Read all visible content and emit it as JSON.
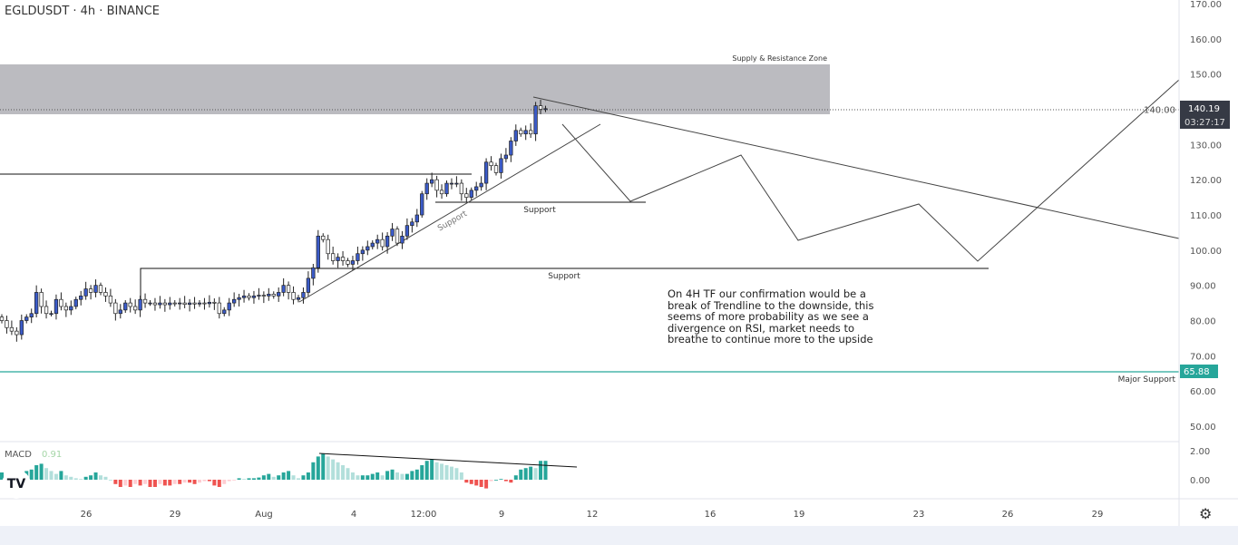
{
  "header": {
    "title": "EGLDUSDT · 4h · BINANCE"
  },
  "colors": {
    "up": "#3b5bc8",
    "down": "#ffffff",
    "wick": "#222222",
    "zone": "#bbbbc0",
    "major_support": "#26a69a",
    "macd_up_strong": "#26a69a",
    "macd_up_weak": "#b2dfdb",
    "macd_down_strong": "#ef5350",
    "macd_down_weak": "#ffcdd2"
  },
  "chart_data": [
    {
      "type": "candlestick",
      "symbol": "EGLDUSDT",
      "interval": "4h",
      "exchange": "BINANCE",
      "ylim": [
        50,
        170
      ],
      "y_ticks": [
        "170.00",
        "160.00",
        "150.00",
        "140.00",
        "130.00",
        "120.00",
        "110.00",
        "100.00",
        "90.00",
        "80.00",
        "70.00",
        "60.00",
        "50.00"
      ],
      "x_ticks": [
        "26",
        "29",
        "Aug",
        "4",
        "12:00",
        "9",
        "12",
        "16",
        "19",
        "23",
        "26",
        "29"
      ],
      "closes": [
        80,
        78,
        77,
        76,
        80,
        81,
        82,
        88,
        84,
        82,
        82,
        86,
        84,
        83,
        84,
        86,
        87,
        89,
        88,
        90,
        88,
        87,
        85,
        82,
        83,
        85,
        84,
        83,
        86,
        85,
        85,
        84.5,
        85,
        84.5,
        85,
        84.8,
        85,
        84.6,
        85,
        84.7,
        85,
        84.8,
        85.2,
        85,
        82,
        83,
        85,
        86,
        86.5,
        87,
        86.5,
        87,
        87.2,
        87,
        87.5,
        87,
        88,
        90,
        88,
        86,
        86.5,
        88,
        92,
        95,
        104,
        103,
        99,
        97,
        98,
        97,
        96,
        97,
        99,
        100,
        101,
        102,
        103,
        101,
        104,
        106,
        102,
        104,
        107,
        108,
        110,
        116,
        119,
        120,
        117,
        116,
        119,
        119,
        119,
        116,
        115,
        117,
        118,
        119,
        125,
        124,
        122,
        126,
        127,
        131,
        134,
        133,
        134,
        133,
        141,
        140,
        140.19
      ],
      "last_price": {
        "value": "140.19",
        "countdown": "03:27:17"
      },
      "annotations": {
        "supply_zone": {
          "label": "Supply & Resistance Zone",
          "from": 138.6,
          "to": 152.8
        },
        "support_upper": {
          "label": "Support",
          "price": 113.6
        },
        "support_lower": {
          "label": "Support",
          "price": 94.8
        },
        "trendline_label": "Support",
        "resistance_line": 121.6,
        "major_support": {
          "label": "Major Support",
          "value": "65.88"
        },
        "note": "On 4H TF our confirmation would be a break of Trendline to the downside, this seems of more probability as we see a divergence on RSI, market needs to breathe to continue more to the upside"
      }
    },
    {
      "type": "bar",
      "title": "MACD",
      "value": "0.91",
      "y_ticks": [
        "2.00",
        "0.00"
      ],
      "histogram": [
        0.5,
        0.3,
        0.2,
        0.3,
        0.4,
        0.6,
        0.7,
        1.0,
        1.1,
        0.8,
        0.6,
        0.4,
        0.6,
        0.3,
        0.2,
        0.1,
        0.05,
        0.2,
        0.3,
        0.5,
        0.3,
        0.2,
        0.0,
        -0.3,
        -0.5,
        -0.4,
        -0.5,
        -0.3,
        -0.4,
        -0.3,
        -0.5,
        -0.5,
        -0.3,
        -0.4,
        -0.4,
        -0.3,
        -0.3,
        -0.2,
        -0.2,
        -0.3,
        -0.2,
        -0.1,
        -0.1,
        -0.4,
        -0.5,
        -0.3,
        -0.1,
        -0.05,
        0.1,
        0.05,
        0.1,
        0.1,
        0.15,
        0.3,
        0.4,
        0.2,
        0.3,
        0.5,
        0.6,
        0.3,
        0.1,
        0.3,
        0.5,
        1.2,
        1.6,
        1.8,
        1.6,
        1.4,
        1.2,
        1.0,
        0.8,
        0.5,
        0.3,
        0.3,
        0.3,
        0.4,
        0.5,
        0.3,
        0.6,
        0.7,
        0.5,
        0.4,
        0.4,
        0.6,
        0.7,
        1.0,
        1.3,
        1.4,
        1.2,
        1.1,
        1.0,
        0.9,
        0.8,
        0.5,
        -0.2,
        -0.3,
        -0.4,
        -0.5,
        -0.6,
        -0.1,
        0.0,
        0.05,
        -0.1,
        -0.2,
        0.3,
        0.7,
        0.8,
        0.9,
        0.8,
        1.3,
        1.3
      ]
    }
  ]
}
